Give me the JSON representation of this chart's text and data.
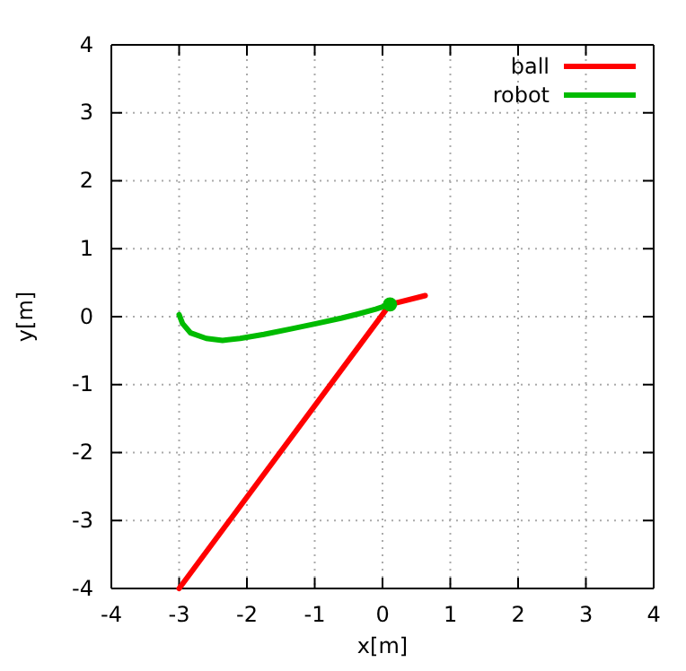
{
  "chart_data": {
    "type": "line",
    "xlabel": "x[m]",
    "ylabel": "y[m]",
    "xlim": [
      -4,
      4
    ],
    "ylim": [
      -4,
      4
    ],
    "xticks": [
      -4,
      -3,
      -2,
      -1,
      0,
      1,
      2,
      3,
      4
    ],
    "yticks": [
      -4,
      -3,
      -2,
      -1,
      0,
      1,
      2,
      3,
      4
    ],
    "grid": true,
    "legend": "top right",
    "marker": "none",
    "line_style": "solid",
    "series": [
      {
        "name": "ball",
        "color": "#ff0000",
        "x": [
          -3.0,
          0.11,
          0.63
        ],
        "values": [
          -4.0,
          0.18,
          0.31
        ]
      },
      {
        "name": "robot",
        "color": "#00bb00",
        "x": [
          -3.0,
          -2.95,
          -2.83,
          -2.6,
          -2.36,
          -2.1,
          -1.75,
          -1.35,
          -0.97,
          -0.6,
          -0.36,
          -0.1,
          0.11
        ],
        "values": [
          0.03,
          -0.1,
          -0.24,
          -0.32,
          -0.35,
          -0.32,
          -0.26,
          -0.18,
          -0.1,
          -0.02,
          0.04,
          0.11,
          0.18
        ]
      },
      {
        "type": "scatter",
        "marker": "circle",
        "color": "#00bb00",
        "x": [
          0.11
        ],
        "values": [
          0.18
        ]
      }
    ]
  }
}
